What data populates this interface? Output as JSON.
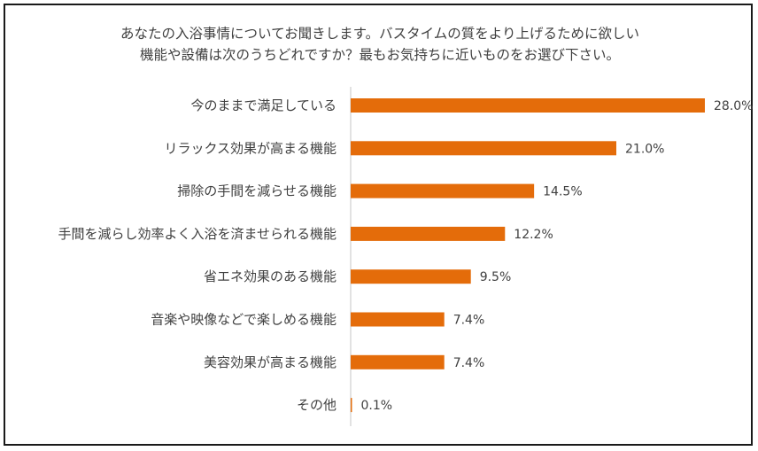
{
  "title_lines": [
    "あなたの入浴事情についてお聞きします。バスタイムの質をより上げるために欲しい",
    "機能や設備は次のうちどれですか？最もお気持ちに近いものをお選び下さい。"
  ],
  "chart_data": {
    "type": "bar",
    "orientation": "horizontal",
    "categories": [
      "今のままで満足している",
      "リラックス効果が高まる機能",
      "掃除の手間を減らせる機能",
      "手間を減らし効率よく入浴を済ませられる機能",
      "省エネ効果のある機能",
      "音楽や映像などで楽しめる機能",
      "美容効果が高まる機能",
      "その他"
    ],
    "values": [
      28.0,
      21.0,
      14.5,
      12.2,
      9.5,
      7.4,
      7.4,
      0.1
    ],
    "value_labels": [
      "28.0%",
      "21.0%",
      "14.5%",
      "12.2%",
      "9.5%",
      "7.4%",
      "7.4%",
      "0.1%"
    ],
    "xlim": [
      0,
      28
    ],
    "bar_color": "#E46C0A",
    "axis_color": "#D9D9D9",
    "text_color": "#404040",
    "grid": false,
    "legend": "none"
  }
}
